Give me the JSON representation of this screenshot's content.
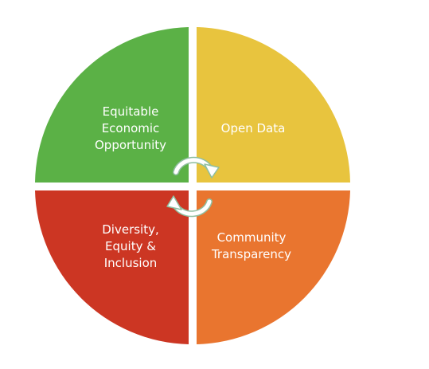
{
  "quadrants": [
    {
      "id": "top-left",
      "lines": [
        "Equitable",
        "Economic",
        "Opportunity"
      ],
      "color": "#5bb146"
    },
    {
      "id": "top-right",
      "lines": [
        "Open Data"
      ],
      "color": "#e8c43e"
    },
    {
      "id": "bottom-left",
      "lines": [
        "Diversity,",
        "Equity &",
        "Inclusion"
      ],
      "color": "#cc3623"
    },
    {
      "id": "bottom-right",
      "lines": [
        "Community",
        "Transparency"
      ],
      "color": "#e9752f"
    }
  ],
  "cycle_arrows_color": "#ffffff",
  "cycle_arrows_outline": "#8fbfa0"
}
